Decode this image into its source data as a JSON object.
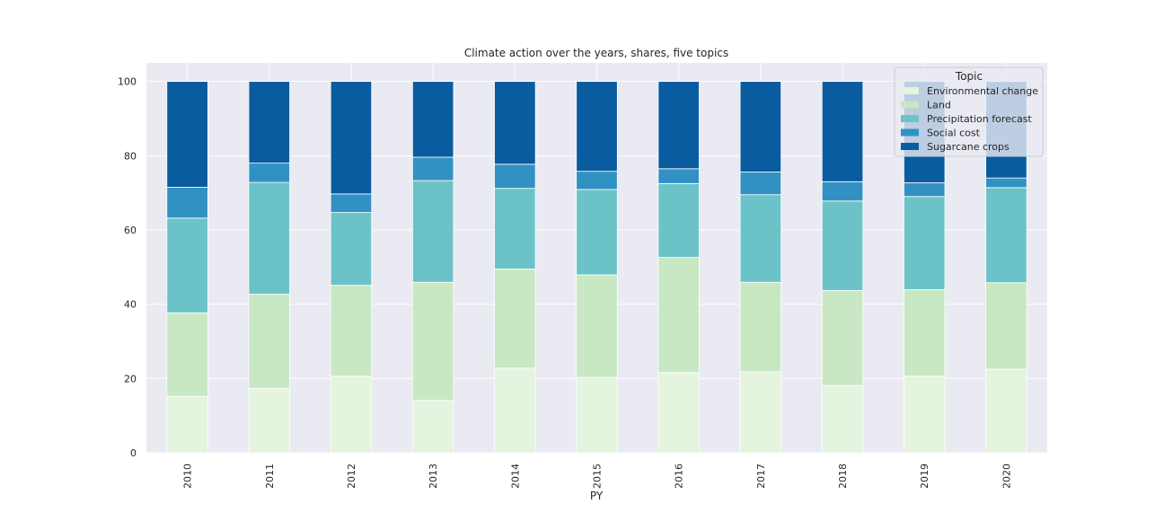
{
  "chart_data": {
    "type": "bar",
    "stacked": true,
    "title": "Climate action over the years, shares, five topics",
    "xlabel": "PY",
    "ylabel": "",
    "ylim": [
      0,
      105
    ],
    "yticks": [
      0,
      20,
      40,
      60,
      80,
      100
    ],
    "grid": true,
    "legend_title": "Topic",
    "legend_position": "top-right",
    "categories": [
      "2010",
      "2011",
      "2012",
      "2013",
      "2014",
      "2015",
      "2016",
      "2017",
      "2018",
      "2019",
      "2020"
    ],
    "series": [
      {
        "name": "Environmental change",
        "color": "#e4f4df",
        "values": [
          15.2,
          17.3,
          20.6,
          14.1,
          22.8,
          20.3,
          21.6,
          21.8,
          18.1,
          20.6,
          22.5
        ]
      },
      {
        "name": "Land",
        "color": "#c7e8c3",
        "values": [
          22.5,
          25.4,
          24.5,
          31.8,
          26.7,
          27.6,
          31.0,
          24.1,
          25.6,
          23.3,
          23.3
        ]
      },
      {
        "name": "Precipitation forecast",
        "color": "#6bc3c8",
        "values": [
          25.5,
          30.1,
          19.6,
          27.4,
          21.7,
          23.0,
          19.9,
          23.6,
          24.1,
          25.1,
          25.6
        ]
      },
      {
        "name": "Social cost",
        "color": "#3291c3",
        "values": [
          8.3,
          5.2,
          5.0,
          6.3,
          6.5,
          4.9,
          4.0,
          6.1,
          5.2,
          3.7,
          2.6
        ]
      },
      {
        "name": "Sugarcane crops",
        "color": "#0a5ca0",
        "values": [
          28.5,
          22.0,
          30.3,
          20.4,
          22.3,
          24.2,
          23.5,
          24.4,
          27.0,
          27.3,
          26.0
        ]
      }
    ]
  }
}
